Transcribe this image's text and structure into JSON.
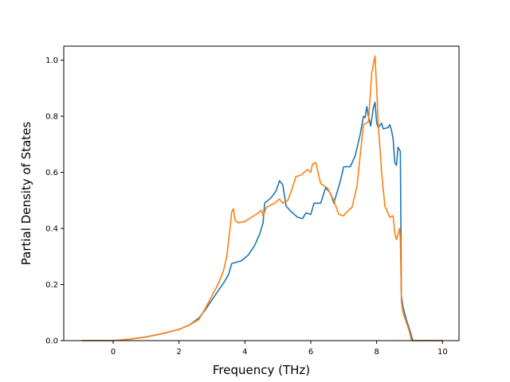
{
  "chart_data": {
    "type": "line",
    "title": "",
    "xlabel": "Frequency (THz)",
    "ylabel": "Partial Density of States",
    "xlim": [
      -1.5,
      10.5
    ],
    "ylim": [
      0.0,
      1.05
    ],
    "xticks": [
      0,
      2,
      4,
      6,
      8,
      10
    ],
    "yticks": [
      0.0,
      0.2,
      0.4,
      0.6,
      0.8,
      1.0
    ],
    "xtick_labels": [
      "0",
      "2",
      "4",
      "6",
      "8",
      "10"
    ],
    "ytick_labels": [
      "0.0",
      "0.2",
      "0.4",
      "0.6",
      "0.8",
      "1.0"
    ],
    "grid": false,
    "legend": "none",
    "series": [
      {
        "color": "#1f77b4",
        "points": [
          [
            -0.95,
            0.0
          ],
          [
            0.0,
            0.0
          ],
          [
            0.5,
            0.005
          ],
          [
            1.0,
            0.013
          ],
          [
            1.5,
            0.025
          ],
          [
            2.0,
            0.04
          ],
          [
            2.3,
            0.055
          ],
          [
            2.6,
            0.08
          ],
          [
            2.8,
            0.11
          ],
          [
            3.0,
            0.145
          ],
          [
            3.2,
            0.18
          ],
          [
            3.35,
            0.205
          ],
          [
            3.5,
            0.235
          ],
          [
            3.6,
            0.275
          ],
          [
            3.7,
            0.278
          ],
          [
            3.9,
            0.285
          ],
          [
            4.1,
            0.305
          ],
          [
            4.3,
            0.34
          ],
          [
            4.45,
            0.38
          ],
          [
            4.55,
            0.42
          ],
          [
            4.6,
            0.49
          ],
          [
            4.8,
            0.51
          ],
          [
            4.95,
            0.535
          ],
          [
            5.05,
            0.57
          ],
          [
            5.15,
            0.555
          ],
          [
            5.25,
            0.48
          ],
          [
            5.4,
            0.46
          ],
          [
            5.6,
            0.44
          ],
          [
            5.75,
            0.435
          ],
          [
            5.85,
            0.455
          ],
          [
            6.0,
            0.45
          ],
          [
            6.1,
            0.49
          ],
          [
            6.3,
            0.49
          ],
          [
            6.45,
            0.545
          ],
          [
            6.6,
            0.525
          ],
          [
            6.7,
            0.49
          ],
          [
            6.8,
            0.53
          ],
          [
            6.9,
            0.57
          ],
          [
            7.0,
            0.62
          ],
          [
            7.2,
            0.62
          ],
          [
            7.35,
            0.66
          ],
          [
            7.5,
            0.735
          ],
          [
            7.6,
            0.8
          ],
          [
            7.65,
            0.795
          ],
          [
            7.7,
            0.835
          ],
          [
            7.75,
            0.8
          ],
          [
            7.82,
            0.765
          ],
          [
            7.9,
            0.83
          ],
          [
            7.95,
            0.85
          ],
          [
            8.0,
            0.775
          ],
          [
            8.05,
            0.76
          ],
          [
            8.15,
            0.775
          ],
          [
            8.2,
            0.755
          ],
          [
            8.35,
            0.76
          ],
          [
            8.4,
            0.77
          ],
          [
            8.45,
            0.75
          ],
          [
            8.5,
            0.72
          ],
          [
            8.55,
            0.635
          ],
          [
            8.6,
            0.625
          ],
          [
            8.65,
            0.69
          ],
          [
            8.72,
            0.675
          ],
          [
            8.75,
            0.16
          ],
          [
            8.8,
            0.12
          ],
          [
            8.9,
            0.075
          ],
          [
            9.0,
            0.04
          ],
          [
            9.1,
            0.0
          ],
          [
            10.0,
            0.0
          ]
        ]
      },
      {
        "color": "#ff7f0e",
        "points": [
          [
            -0.95,
            0.0
          ],
          [
            0.0,
            0.0
          ],
          [
            0.5,
            0.005
          ],
          [
            1.0,
            0.013
          ],
          [
            1.5,
            0.025
          ],
          [
            2.0,
            0.04
          ],
          [
            2.3,
            0.055
          ],
          [
            2.6,
            0.075
          ],
          [
            2.8,
            0.115
          ],
          [
            3.0,
            0.16
          ],
          [
            3.2,
            0.205
          ],
          [
            3.35,
            0.25
          ],
          [
            3.45,
            0.3
          ],
          [
            3.55,
            0.4
          ],
          [
            3.6,
            0.46
          ],
          [
            3.65,
            0.47
          ],
          [
            3.7,
            0.43
          ],
          [
            3.8,
            0.42
          ],
          [
            4.0,
            0.425
          ],
          [
            4.2,
            0.44
          ],
          [
            4.4,
            0.455
          ],
          [
            4.5,
            0.465
          ],
          [
            4.55,
            0.445
          ],
          [
            4.65,
            0.475
          ],
          [
            4.9,
            0.49
          ],
          [
            5.05,
            0.505
          ],
          [
            5.15,
            0.49
          ],
          [
            5.3,
            0.5
          ],
          [
            5.4,
            0.53
          ],
          [
            5.55,
            0.585
          ],
          [
            5.7,
            0.59
          ],
          [
            5.9,
            0.61
          ],
          [
            6.0,
            0.6
          ],
          [
            6.05,
            0.63
          ],
          [
            6.15,
            0.635
          ],
          [
            6.3,
            0.56
          ],
          [
            6.5,
            0.545
          ],
          [
            6.7,
            0.5
          ],
          [
            6.85,
            0.45
          ],
          [
            7.0,
            0.445
          ],
          [
            7.1,
            0.46
          ],
          [
            7.25,
            0.475
          ],
          [
            7.4,
            0.55
          ],
          [
            7.5,
            0.66
          ],
          [
            7.6,
            0.77
          ],
          [
            7.75,
            0.78
          ],
          [
            7.85,
            0.955
          ],
          [
            7.95,
            1.015
          ],
          [
            8.0,
            0.9
          ],
          [
            8.05,
            0.77
          ],
          [
            8.15,
            0.6
          ],
          [
            8.25,
            0.48
          ],
          [
            8.4,
            0.44
          ],
          [
            8.5,
            0.445
          ],
          [
            8.55,
            0.385
          ],
          [
            8.6,
            0.36
          ],
          [
            8.7,
            0.4
          ],
          [
            8.72,
            0.36
          ],
          [
            8.75,
            0.14
          ],
          [
            8.8,
            0.1
          ],
          [
            8.9,
            0.065
          ],
          [
            9.0,
            0.03
          ],
          [
            9.05,
            0.0
          ],
          [
            10.0,
            0.0
          ]
        ]
      }
    ]
  }
}
